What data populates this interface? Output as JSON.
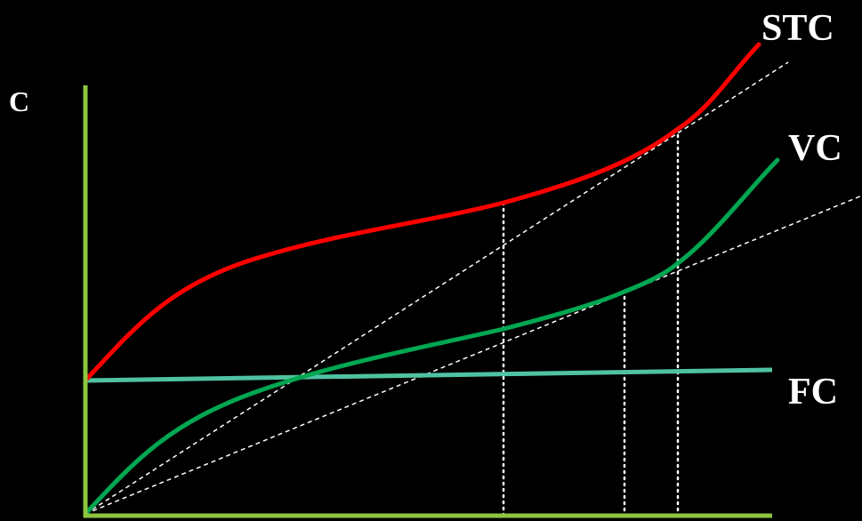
{
  "diagram": {
    "axis_label_y": "C",
    "labels": {
      "stc": "STC",
      "vc": "VC",
      "fc": "FC"
    },
    "colors": {
      "background": "#000000",
      "axes": "#8cc63f",
      "stc": "#ff0000",
      "vc": "#00a651",
      "fc": "#4fc3a1",
      "rays": "#ffffff",
      "guides": "#ffffff"
    }
  }
}
